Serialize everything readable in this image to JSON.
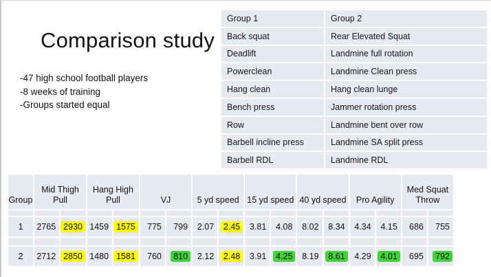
{
  "slide": {
    "title": "Comparison study",
    "bullets": [
      "-47 high school football players",
      "-8 weeks of training",
      "-Groups started equal"
    ]
  },
  "exercise_table": {
    "columns": [
      "Group 1",
      "Group 2"
    ],
    "rows": [
      [
        "Back squat",
        "Rear Elevated Squat"
      ],
      [
        "Deadlift",
        "Landmine full rotation"
      ],
      [
        "Powerclean",
        "Landmine Clean press"
      ],
      [
        "Hang clean",
        "Hang clean lunge"
      ],
      [
        "Bench press",
        "Jammer rotation press"
      ],
      [
        "Row",
        "Landmine bent over row"
      ],
      [
        "Barbell incline press",
        "Landmine SA split press"
      ],
      [
        "Barbell RDL",
        "Landmine RDL"
      ]
    ]
  },
  "results_table": {
    "group_header": "Group",
    "measures": [
      "Mid Thigh Pull",
      "Hang High Pull",
      "VJ",
      "5 yd speed",
      "15 yd speed",
      "40 yd speed",
      "Pro Agility",
      "Med Squat Throw"
    ],
    "rows": [
      {
        "group": "1",
        "cells": [
          {
            "v": "2765"
          },
          {
            "v": "2930",
            "hl": "yellow"
          },
          {
            "v": "1459"
          },
          {
            "v": "1575",
            "hl": "yellow"
          },
          {
            "v": "775"
          },
          {
            "v": "799"
          },
          {
            "v": "2.07"
          },
          {
            "v": "2.45",
            "hl": "yellow"
          },
          {
            "v": "3.81"
          },
          {
            "v": "4.08"
          },
          {
            "v": "8.02"
          },
          {
            "v": "8.34"
          },
          {
            "v": "4.34"
          },
          {
            "v": "4.15"
          },
          {
            "v": "686"
          },
          {
            "v": "755"
          }
        ]
      },
      {
        "group": "2",
        "cells": [
          {
            "v": "2712"
          },
          {
            "v": "2850",
            "hl": "yellow"
          },
          {
            "v": "1480"
          },
          {
            "v": "1581",
            "hl": "yellow"
          },
          {
            "v": "760"
          },
          {
            "v": "810",
            "hl": "green"
          },
          {
            "v": "2.12"
          },
          {
            "v": "2.48",
            "hl": "yellow"
          },
          {
            "v": "3.91"
          },
          {
            "v": "4.25",
            "hl": "green"
          },
          {
            "v": "8.19"
          },
          {
            "v": "8.61",
            "hl": "green"
          },
          {
            "v": "4.29"
          },
          {
            "v": "4.01",
            "hl": "green"
          },
          {
            "v": "695"
          },
          {
            "v": "792",
            "hl": "green"
          }
        ]
      }
    ]
  },
  "colors": {
    "table_cell_bg": "#e8eaf2",
    "highlight_yellow": "#ffff00",
    "highlight_green": "#42d23c",
    "slide_edge": "#c9c9c9"
  }
}
